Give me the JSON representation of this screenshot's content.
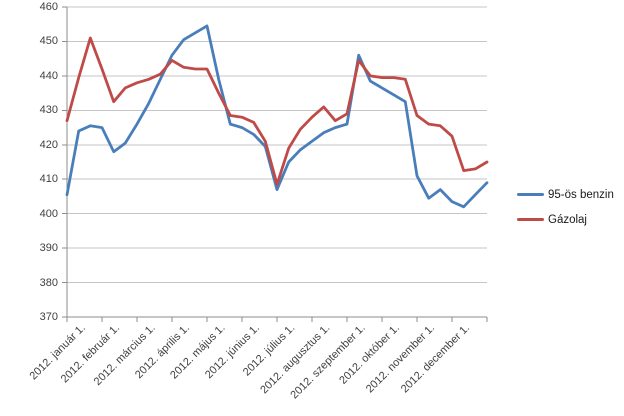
{
  "chart_data": {
    "type": "line",
    "title": "",
    "x_axis": {
      "categories": [
        "2012. január 1.",
        "2012. február 1.",
        "2012. március 1.",
        "2012. április 1.",
        "2012. május 1.",
        "2012. június 1.",
        "2012. július 1.",
        "2012. augusztus 1.",
        "2012. szeptember 1.",
        "2012. október 1.",
        "2012. november 1.",
        "2012. december 1."
      ],
      "points_per_month": 3
    },
    "y_axis": {
      "min": 370,
      "max": 460,
      "step": 10,
      "tick_labels": [
        "370",
        "380",
        "390",
        "400",
        "410",
        "420",
        "430",
        "440",
        "450",
        "460"
      ]
    },
    "grid": true,
    "legend_position": "right",
    "series": [
      {
        "name": "95-ös benzin",
        "color": "#4A7EBB",
        "values": [
          405.5,
          424,
          425.5,
          425,
          418,
          420.5,
          426,
          432,
          439,
          446,
          450.5,
          452.5,
          454.5,
          439,
          426,
          425,
          423,
          419.5,
          407,
          415,
          418.5,
          421,
          423.5,
          425,
          426,
          446,
          438.5,
          436.5,
          434.5,
          432.5,
          411,
          404.5,
          407,
          403.5,
          402,
          405.5,
          409
        ]
      },
      {
        "name": "Gázolaj",
        "color": "#BE4B48",
        "values": [
          427,
          439.5,
          451,
          442,
          432.5,
          436.5,
          438,
          439,
          440.5,
          444.5,
          442.5,
          442,
          442,
          435,
          428.5,
          428,
          426.5,
          421,
          408.5,
          419,
          424.5,
          428,
          431,
          427,
          429,
          444.5,
          440,
          439.5,
          439.5,
          439,
          428.5,
          426,
          425.5,
          422.5,
          412.5,
          413,
          415
        ]
      }
    ]
  },
  "colors": {
    "background": "#FFFFFF",
    "gridline": "#C6C6C6",
    "axis": "#8E8E8E",
    "tick_text": "#3F3F3F",
    "legend_text": "#1A1A1A"
  }
}
